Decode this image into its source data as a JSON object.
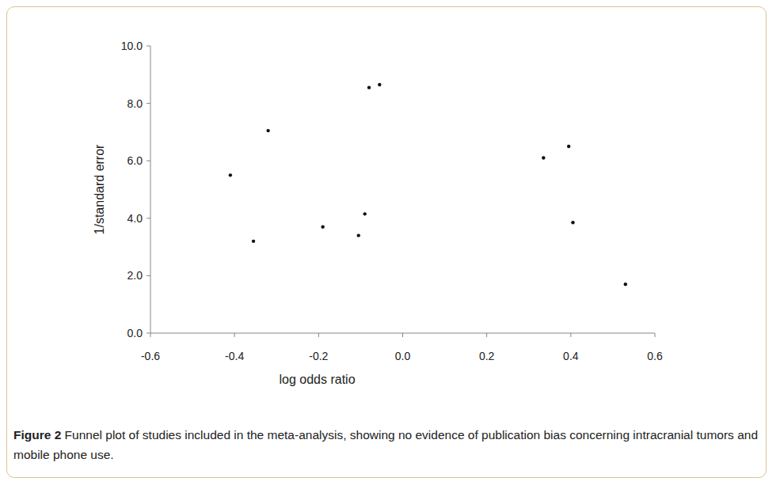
{
  "chart_data": {
    "type": "scatter",
    "x_label": "log odds ratio",
    "y_label": "1/standard error",
    "x": [
      -0.41,
      -0.355,
      -0.32,
      -0.19,
      -0.105,
      -0.09,
      -0.08,
      -0.055,
      0.335,
      0.395,
      0.405,
      0.53
    ],
    "values": [
      5.5,
      3.2,
      7.05,
      3.7,
      3.4,
      4.15,
      8.55,
      8.65,
      6.1,
      6.5,
      3.85,
      1.7
    ],
    "color": "#111111",
    "marker": "circle",
    "xlim": [
      -0.6,
      0.6
    ],
    "xticks": [
      -0.6,
      -0.4,
      -0.2,
      {
        "value": 0,
        "label": "0.0"
      },
      0.2,
      0.4,
      0.6
    ],
    "ylim": [
      0,
      10
    ],
    "yticks": [
      {
        "value": 0,
        "label": "0.0"
      },
      {
        "value": 2,
        "label": "2.0"
      },
      {
        "value": 4,
        "label": "4.0"
      },
      {
        "value": 6,
        "label": "6.0"
      },
      {
        "value": 8,
        "label": "8.0"
      },
      {
        "value": 10,
        "label": "10.0"
      }
    ],
    "grid": false
  },
  "caption": {
    "label": "Figure 2",
    "text": "Funnel plot of studies included in the meta-analysis, showing no evidence of publication bias concerning intracranial tumors and mobile phone use."
  }
}
